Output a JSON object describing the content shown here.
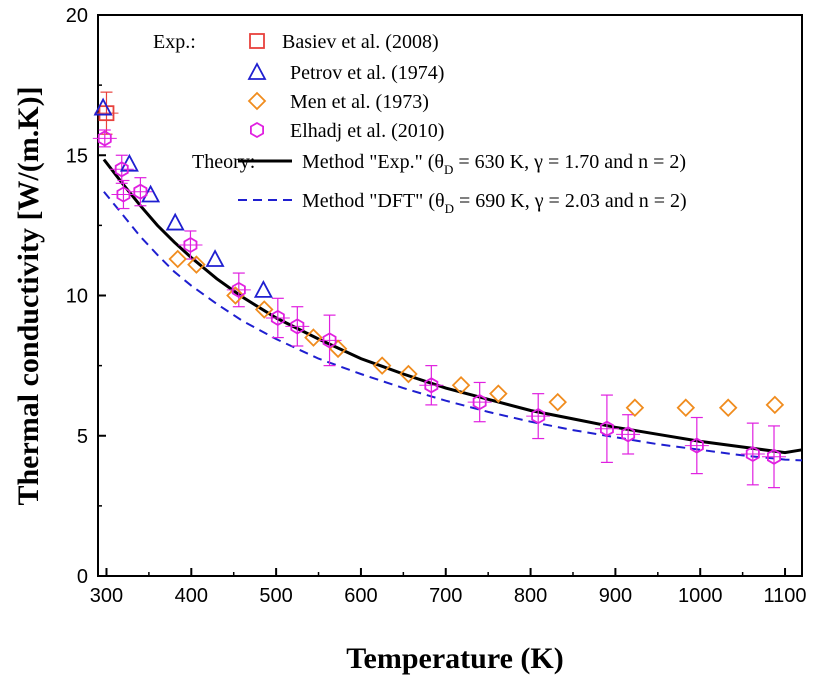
{
  "chart_data": {
    "type": "scatter",
    "xlabel": "Temperature (K)",
    "ylabel": "Thermal conductivity [W/(m.K)]",
    "xlim": [
      290,
      1120
    ],
    "ylim": [
      0,
      20
    ],
    "x_ticks": [
      300,
      400,
      500,
      600,
      700,
      800,
      900,
      1000,
      1100
    ],
    "y_ticks": [
      0,
      5,
      10,
      15,
      20
    ],
    "legend_exp_label": "Exp.:",
    "legend_theory_label": "Theory:",
    "legend_position": "top-left",
    "grid": false,
    "series": [
      {
        "name": "Basiev et al. (2008)",
        "marker": "square",
        "color": "#e8413c",
        "points": [
          {
            "x": 300,
            "y": 16.5,
            "err_y": 0.75
          }
        ]
      },
      {
        "name": "Petrov et al. (1974)",
        "marker": "triangle",
        "color": "#1f1fd0",
        "points": [
          {
            "x": 296,
            "y": 16.7
          },
          {
            "x": 327,
            "y": 14.7
          },
          {
            "x": 352,
            "y": 13.6
          },
          {
            "x": 381,
            "y": 12.6
          },
          {
            "x": 428,
            "y": 11.3
          },
          {
            "x": 485,
            "y": 10.2
          }
        ]
      },
      {
        "name": "Men et al. (1973)",
        "marker": "diamond",
        "color": "#f08c1e",
        "points": [
          {
            "x": 384,
            "y": 11.3
          },
          {
            "x": 406,
            "y": 11.1
          },
          {
            "x": 452,
            "y": 10.0
          },
          {
            "x": 486,
            "y": 9.5
          },
          {
            "x": 544,
            "y": 8.5
          },
          {
            "x": 573,
            "y": 8.1
          },
          {
            "x": 625,
            "y": 7.5
          },
          {
            "x": 656,
            "y": 7.2
          },
          {
            "x": 718,
            "y": 6.8
          },
          {
            "x": 762,
            "y": 6.5
          },
          {
            "x": 832,
            "y": 6.2
          },
          {
            "x": 923,
            "y": 6.0
          },
          {
            "x": 983,
            "y": 6.0
          },
          {
            "x": 1033,
            "y": 6.0
          },
          {
            "x": 1088,
            "y": 6.1
          }
        ]
      },
      {
        "name": "Elhadj et al. (2010)",
        "marker": "hexagon",
        "color": "#e020e0",
        "points": [
          {
            "x": 298,
            "y": 15.6,
            "err_y": 0.3
          },
          {
            "x": 318,
            "y": 14.5,
            "err_y": 0.5
          },
          {
            "x": 320,
            "y": 13.6,
            "err_y": 0.5
          },
          {
            "x": 340,
            "y": 13.7,
            "err_y": 0.5
          },
          {
            "x": 399,
            "y": 11.8,
            "err_y": 0.5
          },
          {
            "x": 456,
            "y": 10.2,
            "err_y": 0.6
          },
          {
            "x": 502,
            "y": 9.2,
            "err_y": 0.7
          },
          {
            "x": 525,
            "y": 8.9,
            "err_y": 0.7
          },
          {
            "x": 563,
            "y": 8.4,
            "err_y": 0.9
          },
          {
            "x": 683,
            "y": 6.8,
            "err_y": 0.7
          },
          {
            "x": 740,
            "y": 6.2,
            "err_y": 0.7
          },
          {
            "x": 809,
            "y": 5.7,
            "err_y": 0.8
          },
          {
            "x": 890,
            "y": 5.25,
            "err_y": 1.2
          },
          {
            "x": 915,
            "y": 5.05,
            "err_y": 0.7
          },
          {
            "x": 996,
            "y": 4.65,
            "err_y": 1.0
          },
          {
            "x": 1062,
            "y": 4.35,
            "err_y": 1.1
          },
          {
            "x": 1087,
            "y": 4.25,
            "err_y": 1.1
          }
        ]
      }
    ],
    "curves": [
      {
        "label": "Method \"Exp.\" (",
        "label_params": "= 630 K, γ = 1.70 and n = 2)",
        "symbol": "θ",
        "symbol_sub": "D",
        "style": "solid",
        "color": "#000000",
        "x": [
          297,
          320,
          340,
          360,
          380,
          400,
          430,
          460,
          500,
          550,
          600,
          650,
          700,
          750,
          800,
          850,
          900,
          950,
          1000,
          1050,
          1100,
          1120
        ],
        "y": [
          14.85,
          13.95,
          13.2,
          12.5,
          11.9,
          11.35,
          10.6,
          9.95,
          9.2,
          8.45,
          7.75,
          7.2,
          6.7,
          6.3,
          5.9,
          5.6,
          5.3,
          5.05,
          4.8,
          4.6,
          4.4,
          4.5
        ]
      },
      {
        "label": "Method \"DFT\" (",
        "label_params": "= 690 K, γ = 2.03 and n = 2)",
        "symbol": "θ",
        "symbol_sub": "D",
        "style": "dashed",
        "color": "#1f1fd0",
        "x": [
          297,
          320,
          340,
          360,
          380,
          400,
          430,
          460,
          500,
          550,
          600,
          650,
          700,
          750,
          800,
          850,
          900,
          950,
          1000,
          1050,
          1100,
          1120
        ],
        "y": [
          13.7,
          12.85,
          12.1,
          11.45,
          10.85,
          10.35,
          9.7,
          9.1,
          8.45,
          7.75,
          7.2,
          6.7,
          6.25,
          5.85,
          5.5,
          5.2,
          4.95,
          4.7,
          4.5,
          4.3,
          4.15,
          4.12
        ]
      }
    ]
  }
}
